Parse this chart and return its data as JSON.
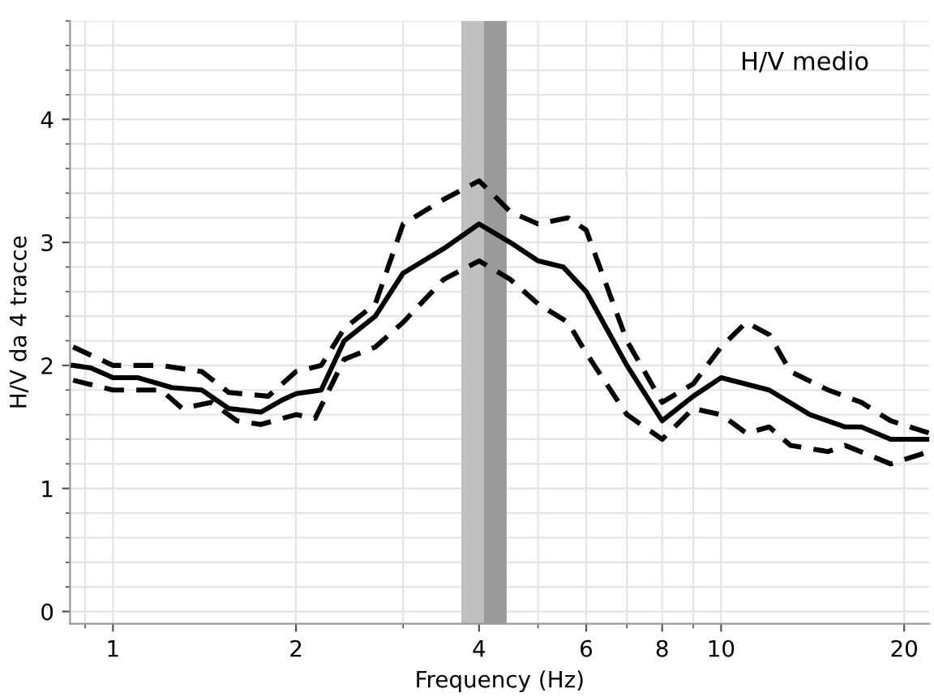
{
  "chart_data": {
    "type": "line",
    "xlabel": "Frequency (Hz)",
    "ylabel": "H/V da 4 tracce",
    "log": "x",
    "xlim": [
      0.85,
      22
    ],
    "xticks": [
      1,
      2,
      4,
      6,
      8,
      10,
      20
    ],
    "ylim": [
      -0.1,
      4.8
    ],
    "yticks": [
      0,
      1,
      2,
      3,
      4
    ],
    "grid": true,
    "marker": "none",
    "annotations": [
      "H/V medio"
    ],
    "bands": [
      {
        "axis": "x",
        "from": 3.74,
        "to": 4.07,
        "color": "#c0c0c0"
      },
      {
        "axis": "x",
        "from": 4.07,
        "to": 4.44,
        "color": "#9a9a9a"
      }
    ],
    "series": [
      {
        "color": "#000000",
        "line_style": "solid",
        "x": [
          0.86,
          0.92,
          1,
          1.1,
          1.25,
          1.4,
          1.55,
          1.75,
          1.9,
          2,
          2.2,
          2.4,
          2.7,
          3,
          3.5,
          4,
          4.5,
          5,
          5.5,
          6,
          7,
          8,
          9,
          10,
          12,
          14,
          16,
          17,
          19,
          22
        ],
        "values": [
          2.0,
          1.98,
          1.9,
          1.9,
          1.82,
          1.8,
          1.65,
          1.62,
          1.72,
          1.77,
          1.8,
          2.2,
          2.4,
          2.75,
          2.95,
          3.15,
          3.0,
          2.85,
          2.8,
          2.6,
          2.0,
          1.55,
          1.75,
          1.9,
          1.8,
          1.6,
          1.5,
          1.5,
          1.4,
          1.4
        ]
      },
      {
        "color": "#000000",
        "line_style": "dashed",
        "x": [
          0.86,
          1,
          1.2,
          1.4,
          1.55,
          1.8,
          2,
          2.2,
          2.4,
          2.7,
          3,
          3.5,
          4,
          4.5,
          5,
          5.6,
          6,
          7,
          8,
          9,
          10,
          11,
          12,
          13,
          15,
          17,
          19,
          22
        ],
        "values": [
          2.15,
          2.0,
          2.0,
          1.95,
          1.78,
          1.75,
          1.95,
          2.0,
          2.3,
          2.5,
          3.15,
          3.35,
          3.5,
          3.25,
          3.15,
          3.2,
          3.1,
          2.2,
          1.7,
          1.85,
          2.15,
          2.35,
          2.25,
          1.95,
          1.8,
          1.7,
          1.55,
          1.45
        ]
      },
      {
        "color": "#000000",
        "line_style": "dashed",
        "x": [
          0.86,
          1,
          1.2,
          1.3,
          1.45,
          1.6,
          1.75,
          2,
          2.15,
          2.4,
          2.7,
          3,
          3.5,
          4,
          4.5,
          5,
          5.6,
          6,
          7,
          8,
          9,
          10,
          11,
          12,
          13,
          15,
          16,
          19,
          22
        ],
        "values": [
          1.88,
          1.8,
          1.8,
          1.65,
          1.7,
          1.55,
          1.52,
          1.6,
          1.57,
          2.05,
          2.15,
          2.35,
          2.7,
          2.85,
          2.7,
          2.5,
          2.35,
          2.1,
          1.6,
          1.4,
          1.65,
          1.6,
          1.45,
          1.5,
          1.35,
          1.3,
          1.35,
          1.2,
          1.3
        ]
      }
    ]
  }
}
